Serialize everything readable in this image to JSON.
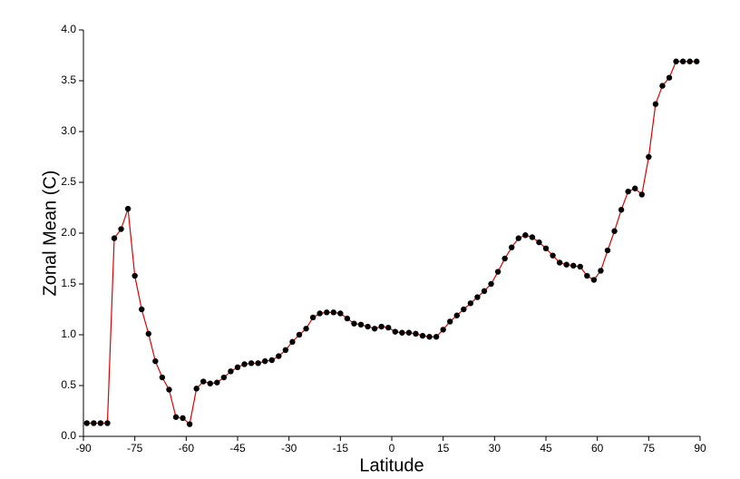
{
  "chart_data": {
    "type": "line",
    "x_label": "Latitude",
    "y_label": "Zonal Mean (C)",
    "x": [
      -89,
      -87,
      -85,
      -83,
      -81,
      -79,
      -77,
      -75,
      -73,
      -71,
      -69,
      -67,
      -65,
      -63,
      -61,
      -59,
      -57,
      -55,
      -53,
      -51,
      -49,
      -47,
      -45,
      -43,
      -41,
      -39,
      -37,
      -35,
      -33,
      -31,
      -29,
      -27,
      -25,
      -23,
      -21,
      -19,
      -17,
      -15,
      -13,
      -11,
      -9,
      -7,
      -5,
      -3,
      -1,
      1,
      3,
      5,
      7,
      9,
      11,
      13,
      15,
      17,
      19,
      21,
      23,
      25,
      27,
      29,
      31,
      33,
      35,
      37,
      39,
      41,
      43,
      45,
      47,
      49,
      51,
      53,
      55,
      57,
      59,
      61,
      63,
      65,
      67,
      69,
      71,
      73,
      75,
      77,
      79,
      81,
      83,
      85,
      87,
      89
    ],
    "values": [
      0.13,
      0.13,
      0.13,
      0.13,
      1.95,
      2.04,
      2.24,
      1.58,
      1.25,
      1.01,
      0.74,
      0.58,
      0.46,
      0.19,
      0.18,
      0.12,
      0.47,
      0.54,
      0.52,
      0.53,
      0.58,
      0.64,
      0.68,
      0.71,
      0.72,
      0.72,
      0.74,
      0.75,
      0.79,
      0.85,
      0.93,
      1.0,
      1.06,
      1.17,
      1.21,
      1.22,
      1.22,
      1.21,
      1.16,
      1.11,
      1.1,
      1.08,
      1.06,
      1.08,
      1.07,
      1.03,
      1.02,
      1.02,
      1.01,
      0.99,
      0.98,
      0.98,
      1.05,
      1.13,
      1.19,
      1.25,
      1.31,
      1.37,
      1.43,
      1.5,
      1.62,
      1.75,
      1.86,
      1.95,
      1.98,
      1.96,
      1.91,
      1.85,
      1.78,
      1.71,
      1.69,
      1.68,
      1.67,
      1.58,
      1.54,
      1.63,
      1.83,
      2.02,
      2.23,
      2.41,
      2.44,
      2.38,
      2.75,
      3.27,
      3.45,
      3.53,
      3.69,
      3.69,
      3.69,
      3.69
    ],
    "color": "#e00000",
    "marker_color": "#000000",
    "xlim": [
      -90,
      90
    ],
    "xticks": [
      -90,
      -75,
      -60,
      -45,
      -30,
      -15,
      0,
      15,
      30,
      45,
      60,
      75,
      90
    ],
    "ylim": [
      0,
      4
    ],
    "yticks": [
      {
        "value": 0,
        "label": "0.0"
      },
      0.5,
      {
        "value": 1,
        "label": "1.0"
      },
      1.5,
      {
        "value": 2,
        "label": "2.0"
      },
      2.5,
      {
        "value": 3,
        "label": "3.0"
      },
      3.5,
      {
        "value": 4,
        "label": "4.0"
      }
    ]
  }
}
